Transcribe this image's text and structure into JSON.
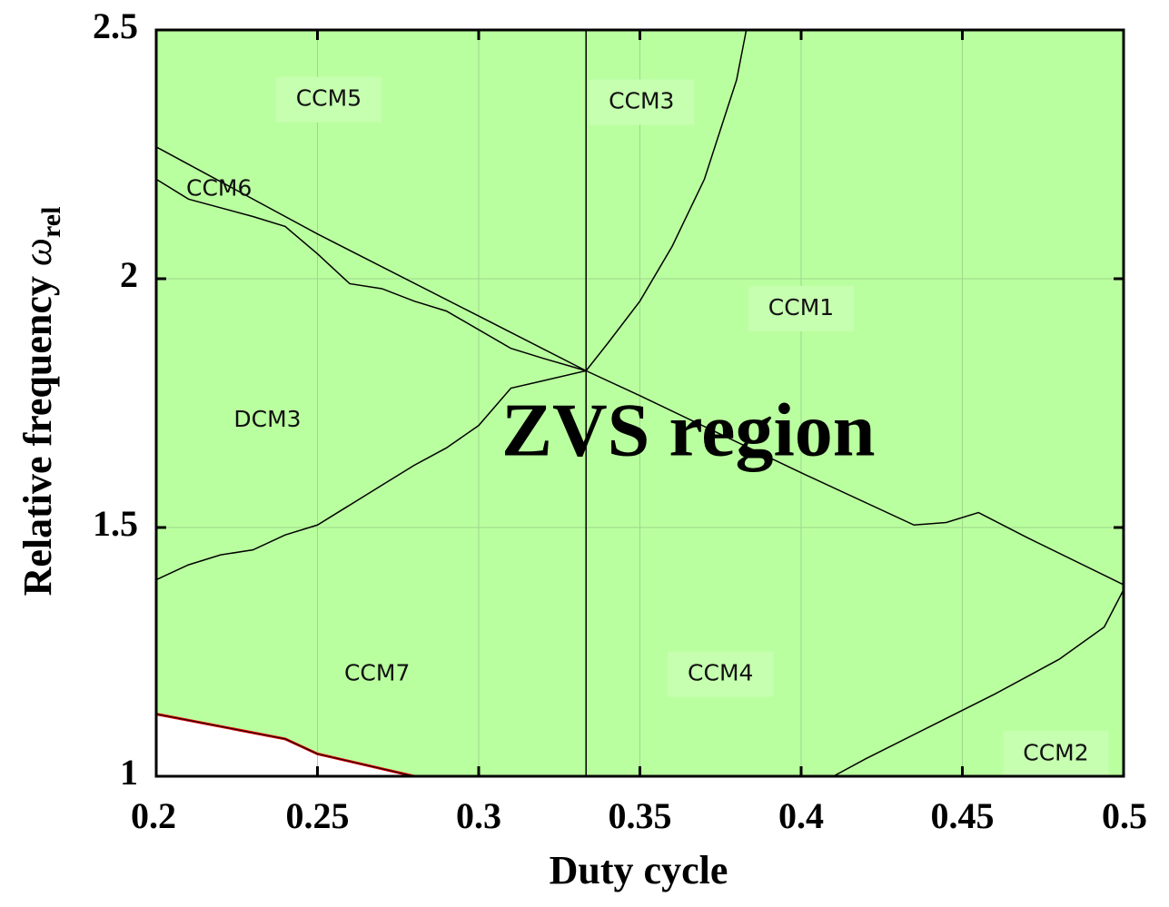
{
  "chart_data": {
    "type": "region-map",
    "title": "",
    "xlabel": "Duty cycle",
    "ylabel": "Relative frequency",
    "ylabel_symbol": "ω",
    "ylabel_subscript": "rel",
    "xlim": [
      0.2,
      0.5
    ],
    "ylim": [
      1,
      2.5
    ],
    "xticks": [
      0.2,
      0.25,
      0.3,
      0.35,
      0.4,
      0.45,
      0.5
    ],
    "xtick_labels": [
      "0.2",
      "0.25",
      "0.3",
      "0.35",
      "0.4",
      "0.45",
      "0.5"
    ],
    "yticks": [
      1,
      1.5,
      2,
      2.5
    ],
    "ytick_labels": [
      "1",
      "1.5",
      "2",
      "2.5"
    ],
    "grid": true,
    "colors": {
      "zvs_fill": "#baff9f",
      "boundary": "#000000",
      "zvs_edge": "#e00000",
      "label_bg": "#c6ffb0",
      "grid": "#9ed68c"
    },
    "zvs_region": {
      "label": "ZVS region",
      "label_at": [
        0.365,
        1.68
      ],
      "lower_edge": [
        [
          0.2,
          1.125
        ],
        [
          0.24,
          1.075
        ],
        [
          0.25,
          1.045
        ],
        [
          0.28,
          1.0
        ]
      ]
    },
    "boundaries": [
      {
        "name": "D=1/3",
        "points": [
          [
            0.3333,
            1.0
          ],
          [
            0.3333,
            2.5
          ]
        ]
      },
      {
        "name": "CCM5/CCM6 upper",
        "points": [
          [
            0.2,
            2.265
          ],
          [
            0.25,
            2.09
          ],
          [
            0.3,
            1.925
          ],
          [
            0.3333,
            1.815
          ],
          [
            0.35,
            1.765
          ],
          [
            0.4,
            1.61
          ],
          [
            0.435,
            1.505
          ],
          [
            0.445,
            1.51
          ],
          [
            0.455,
            1.53
          ],
          [
            0.47,
            1.48
          ],
          [
            0.5,
            1.385
          ]
        ]
      },
      {
        "name": "CCM6/DCM3",
        "points": [
          [
            0.2,
            2.2
          ],
          [
            0.21,
            2.16
          ],
          [
            0.23,
            2.125
          ],
          [
            0.24,
            2.105
          ],
          [
            0.25,
            2.05
          ],
          [
            0.26,
            1.99
          ],
          [
            0.27,
            1.98
          ],
          [
            0.28,
            1.955
          ],
          [
            0.29,
            1.935
          ],
          [
            0.31,
            1.86
          ],
          [
            0.32,
            1.84
          ],
          [
            0.3333,
            1.815
          ]
        ]
      },
      {
        "name": "DCM3/CCM7",
        "points": [
          [
            0.2,
            1.395
          ],
          [
            0.21,
            1.425
          ],
          [
            0.22,
            1.445
          ],
          [
            0.23,
            1.455
          ],
          [
            0.24,
            1.485
          ],
          [
            0.25,
            1.505
          ],
          [
            0.26,
            1.545
          ],
          [
            0.27,
            1.585
          ],
          [
            0.28,
            1.625
          ],
          [
            0.29,
            1.66
          ],
          [
            0.3,
            1.705
          ],
          [
            0.31,
            1.78
          ],
          [
            0.32,
            1.795
          ],
          [
            0.3333,
            1.815
          ]
        ]
      },
      {
        "name": "CCM3/CCM1",
        "points": [
          [
            0.3333,
            1.815
          ],
          [
            0.34,
            1.87
          ],
          [
            0.35,
            1.955
          ],
          [
            0.36,
            2.065
          ],
          [
            0.37,
            2.2
          ],
          [
            0.38,
            2.4
          ],
          [
            0.383,
            2.5
          ]
        ]
      },
      {
        "name": "CCM4/CCM2",
        "points": [
          [
            0.41,
            1.0
          ],
          [
            0.42,
            1.035
          ],
          [
            0.44,
            1.1
          ],
          [
            0.46,
            1.165
          ],
          [
            0.48,
            1.235
          ],
          [
            0.494,
            1.3
          ],
          [
            0.5,
            1.375
          ]
        ]
      }
    ],
    "region_labels": [
      {
        "text": "CCM5",
        "at": [
          0.2535,
          2.36
        ],
        "boxed": true
      },
      {
        "text": "CCM3",
        "at": [
          0.3505,
          2.355
        ],
        "boxed": true
      },
      {
        "text": "CCM6",
        "at": [
          0.2195,
          2.18
        ],
        "boxed": false
      },
      {
        "text": "CCM1",
        "at": [
          0.4,
          1.94
        ],
        "boxed": true
      },
      {
        "text": "DCM3",
        "at": [
          0.2345,
          1.715
        ],
        "boxed": false
      },
      {
        "text": "CCM7",
        "at": [
          0.2685,
          1.205
        ],
        "boxed": false
      },
      {
        "text": "CCM4",
        "at": [
          0.375,
          1.205
        ],
        "boxed": true
      },
      {
        "text": "CCM2",
        "at": [
          0.479,
          1.045
        ],
        "boxed": true
      }
    ]
  }
}
